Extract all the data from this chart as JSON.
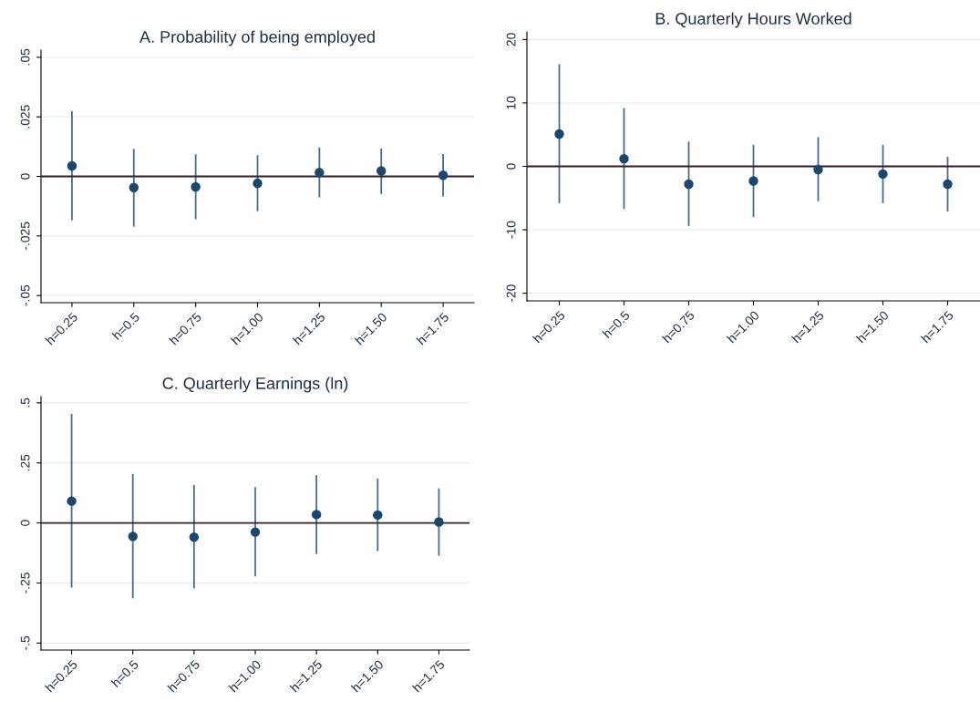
{
  "chart_data": [
    {
      "type": "scatter",
      "title": "A. Probability of being employed",
      "categories": [
        "h=0.25",
        "h=0.5",
        "h=0.75",
        "h=1.00",
        "h=1.25",
        "h=1.50",
        "h=1.75"
      ],
      "series": [
        {
          "color": "#1a476f",
          "values": [
            0.0044,
            -0.0047,
            -0.0044,
            -0.0029,
            0.0016,
            0.0023,
            0.0005
          ],
          "errors": [
            [
              -0.0184,
              0.0274
            ],
            [
              -0.0211,
              0.0115
            ],
            [
              -0.018,
              0.0093
            ],
            [
              -0.0146,
              0.0089
            ],
            [
              -0.0088,
              0.0121
            ],
            [
              -0.0074,
              0.0117
            ],
            [
              -0.0084,
              0.0094
            ]
          ]
        }
      ],
      "ylim": [
        -0.053,
        0.053
      ],
      "yticks": [
        {
          "value": -0.05,
          "label": "-.05"
        },
        {
          "value": -0.025,
          "label": "-.025"
        },
        0,
        {
          "value": 0.025,
          "label": ".025"
        },
        {
          "value": 0.05,
          "label": ".05"
        }
      ],
      "ref_lines": [
        {
          "axis": "y",
          "value": 0,
          "color": "#3a1f24"
        }
      ],
      "grid": "y",
      "marker": "circle",
      "legend": false
    },
    {
      "type": "scatter",
      "title": "B. Quarterly Hours Worked",
      "categories": [
        "h=0.25",
        "h=0.5",
        "h=0.75",
        "h=1.00",
        "h=1.25",
        "h=1.50",
        "h=1.75"
      ],
      "series": [
        {
          "color": "#1a476f",
          "values": [
            5.1,
            1.2,
            -2.8,
            -2.3,
            -0.5,
            -1.2,
            -2.8
          ],
          "errors": [
            [
              -5.8,
              16.1
            ],
            [
              -6.7,
              9.2
            ],
            [
              -9.4,
              3.9
            ],
            [
              -8.0,
              3.4
            ],
            [
              -5.5,
              4.6
            ],
            [
              -5.8,
              3.4
            ],
            [
              -7.1,
              1.5
            ]
          ]
        }
      ],
      "ylim": [
        -21.2,
        21.2
      ],
      "yticks": [
        -20,
        -10,
        0,
        10,
        20
      ],
      "ref_lines": [
        {
          "axis": "y",
          "value": 0,
          "color": "#3a1f24"
        }
      ],
      "grid": "y",
      "marker": "circle",
      "legend": false
    },
    {
      "type": "scatter",
      "title": "C. Quarterly Earnings (ln)",
      "categories": [
        "h=0.25",
        "h=0.5",
        "h=0.75",
        "h=1.00",
        "h=1.25",
        "h=1.50",
        "h=1.75"
      ],
      "series": [
        {
          "color": "#1a476f",
          "values": [
            0.091,
            -0.056,
            -0.059,
            -0.038,
            0.035,
            0.033,
            0.004
          ],
          "errors": [
            [
              -0.269,
              0.454
            ],
            [
              -0.314,
              0.204
            ],
            [
              -0.273,
              0.158
            ],
            [
              -0.223,
              0.149
            ],
            [
              -0.129,
              0.199
            ],
            [
              -0.117,
              0.185
            ],
            [
              -0.136,
              0.144
            ]
          ]
        }
      ],
      "ylim": [
        -0.529,
        0.526
      ],
      "yticks": [
        {
          "value": -0.5,
          "label": "-.5"
        },
        {
          "value": -0.25,
          "label": "-.25"
        },
        0,
        {
          "value": 0.25,
          "label": ".25"
        },
        {
          "value": 0.5,
          "label": ".5"
        }
      ],
      "ref_lines": [
        {
          "axis": "y",
          "value": 0,
          "color": "#3a1f24"
        }
      ],
      "grid": "y",
      "marker": "circle",
      "legend": false
    }
  ]
}
